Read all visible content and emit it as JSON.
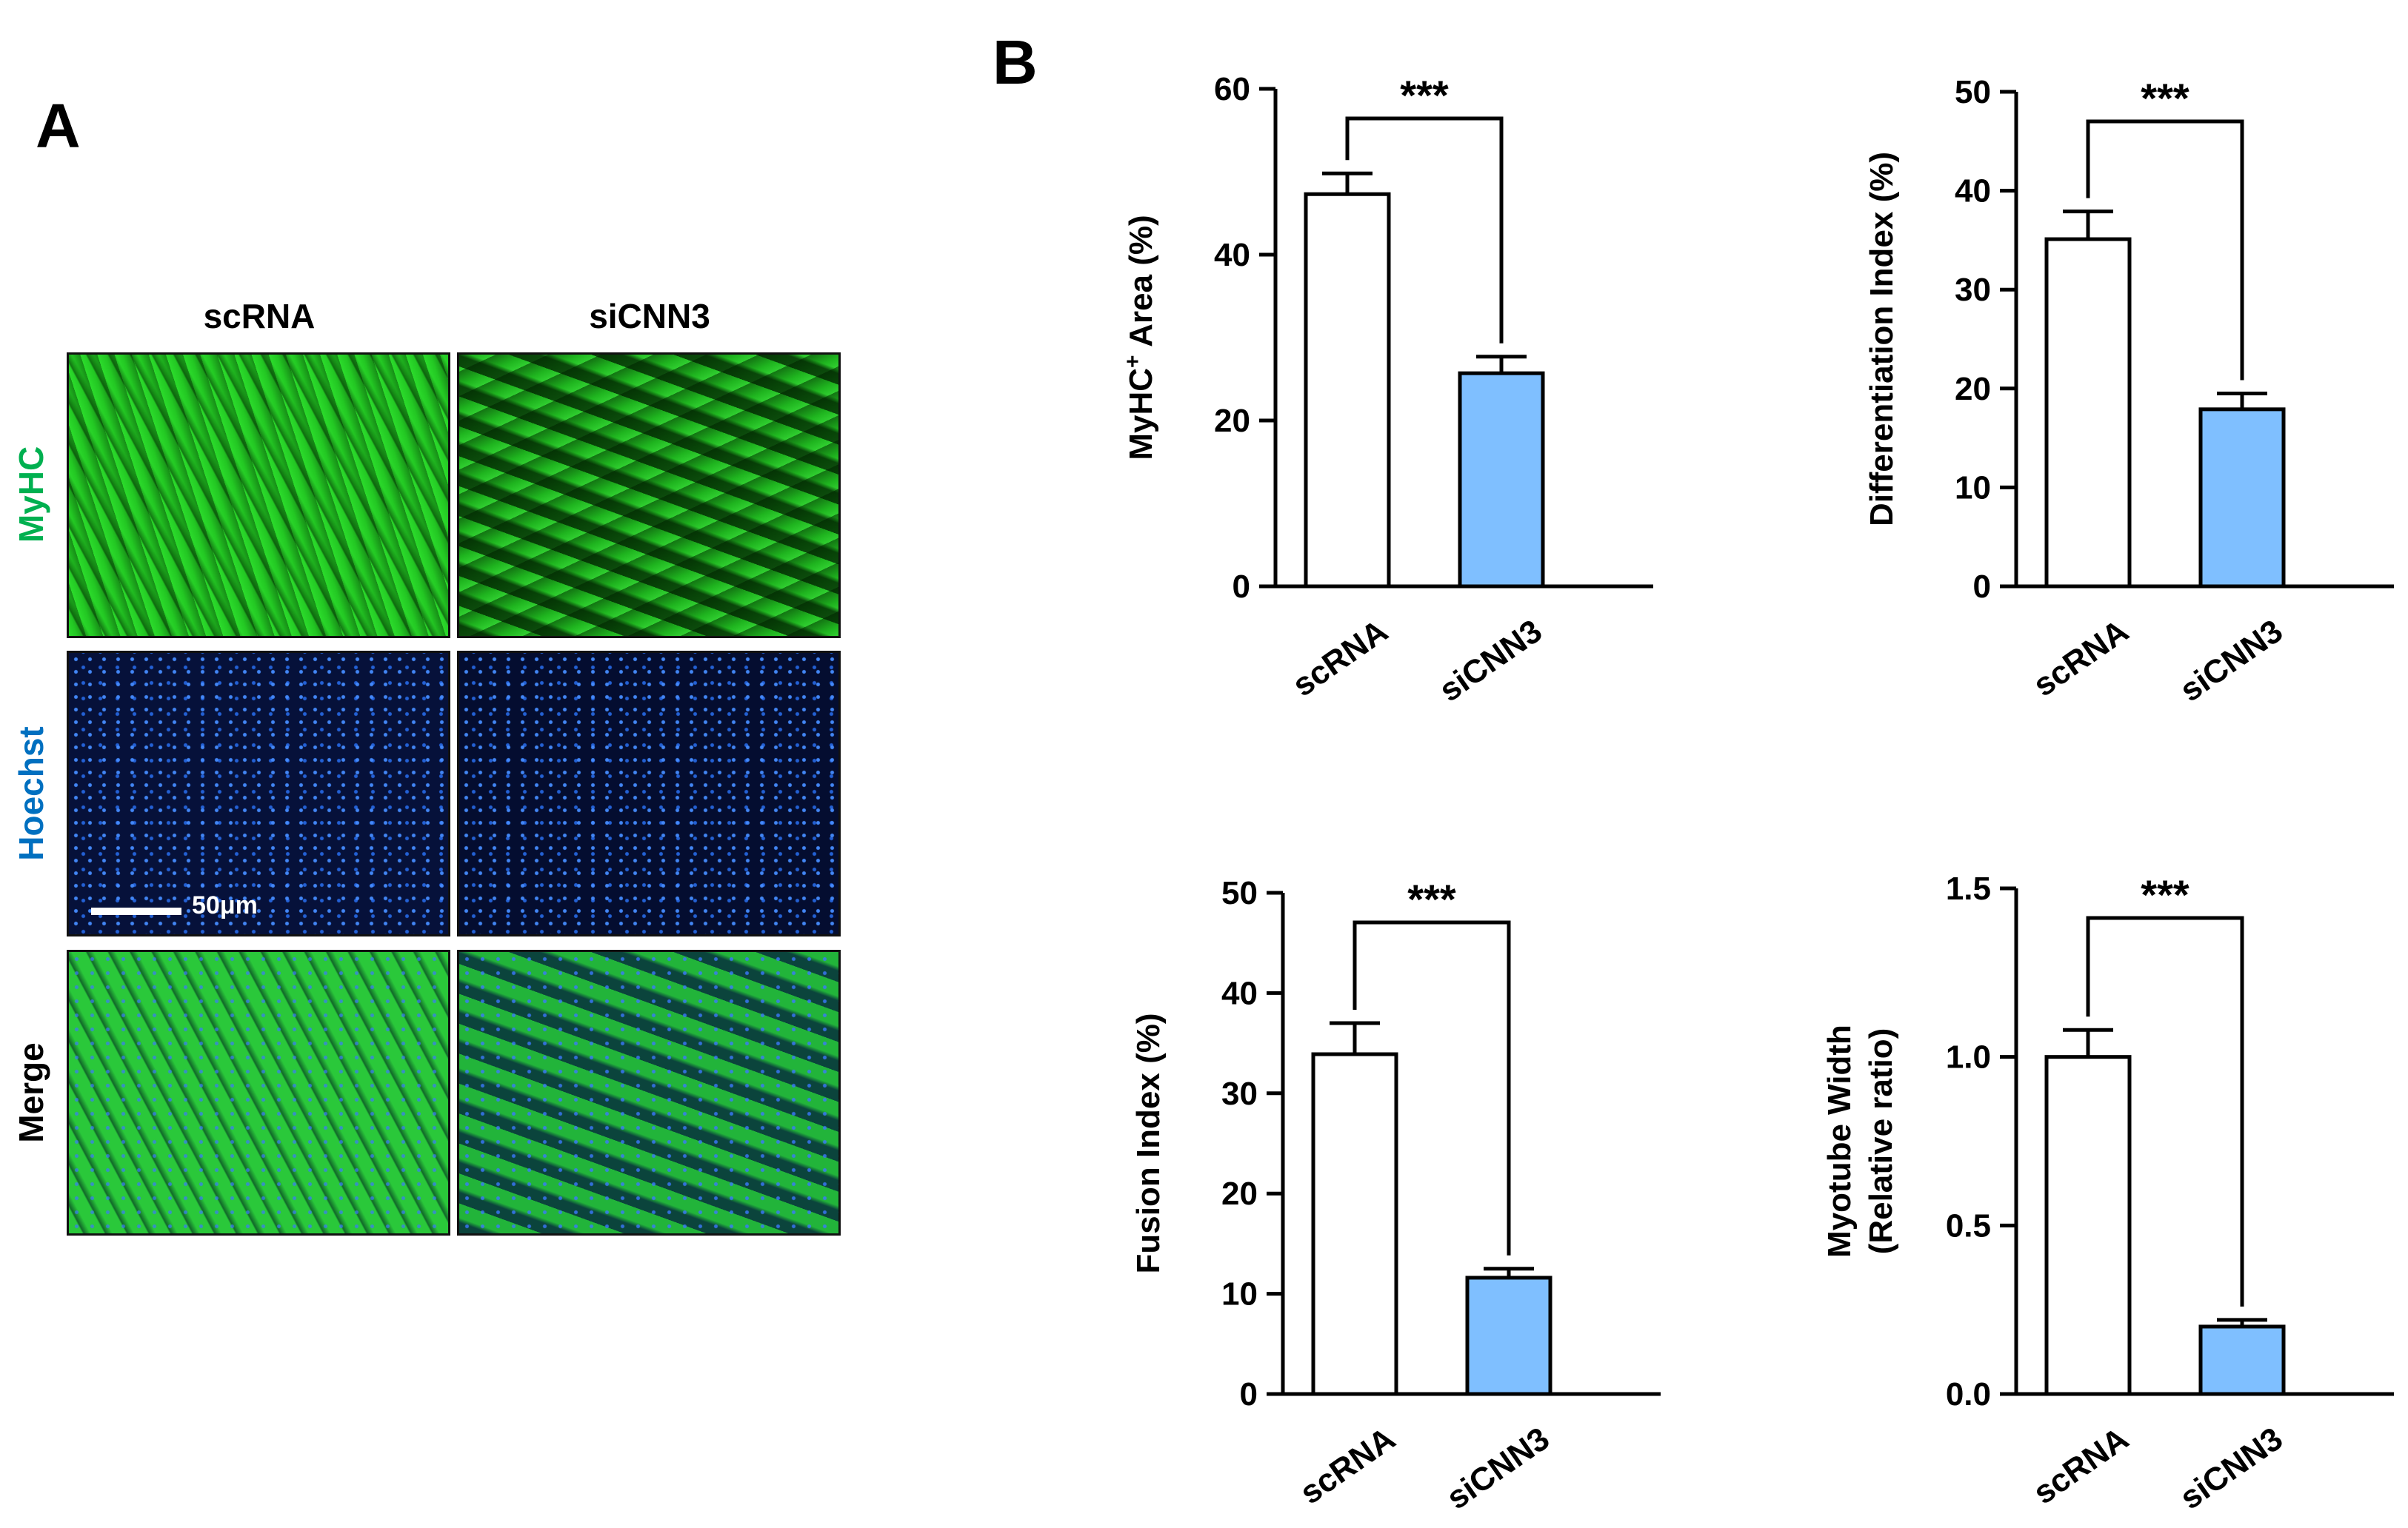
{
  "panelA": {
    "label": "A",
    "columns": [
      "scRNA",
      "siCNN3"
    ],
    "rows": [
      {
        "label": "MyHC",
        "color": "#00b050"
      },
      {
        "label": "Hoechst",
        "color": "#0070c0"
      },
      {
        "label": "Merge",
        "color": "#000000"
      }
    ],
    "scale_bar": "50μm"
  },
  "panelB": {
    "label": "B"
  },
  "colors": {
    "scRNA_fill": "#ffffff",
    "siCNN3_fill": "#7fbfff",
    "stroke": "#000000"
  },
  "chart_data": [
    {
      "type": "bar",
      "categories": [
        "scRNA",
        "siCNN3"
      ],
      "values": [
        47.3,
        25.7
      ],
      "errors": [
        2.5,
        2.0
      ],
      "ylabel_main": "MyHC",
      "ylabel_sup": "+",
      "ylabel_rest": " Area (%)",
      "ylim": [
        0,
        60
      ],
      "yticks": [
        "0",
        "20",
        "40",
        "60"
      ],
      "significance": "***"
    },
    {
      "type": "bar",
      "categories": [
        "scRNA",
        "siCNN3"
      ],
      "values": [
        35.1,
        17.9
      ],
      "errors": [
        2.8,
        1.6
      ],
      "ylabel": "Differentiation Index (%)",
      "ylim": [
        0,
        50
      ],
      "yticks": [
        "0",
        "10",
        "20",
        "30",
        "40",
        "50"
      ],
      "significance": "***"
    },
    {
      "type": "bar",
      "categories": [
        "scRNA",
        "siCNN3"
      ],
      "values": [
        33.9,
        11.6
      ],
      "errors": [
        3.1,
        0.9
      ],
      "ylabel": "Fusion Index (%)",
      "ylim": [
        0,
        50
      ],
      "yticks": [
        "0",
        "10",
        "20",
        "30",
        "40",
        "50"
      ],
      "significance": "***"
    },
    {
      "type": "bar",
      "categories": [
        "scRNA",
        "siCNN3"
      ],
      "values": [
        1.0,
        0.2
      ],
      "errors": [
        0.08,
        0.02
      ],
      "ylabel_line1": "Myotube Width",
      "ylabel_line2": "(Relative ratio)",
      "ylim": [
        0,
        1.5
      ],
      "yticks": [
        "0.0",
        "0.5",
        "1.0",
        "1.5"
      ],
      "significance": "***"
    }
  ]
}
